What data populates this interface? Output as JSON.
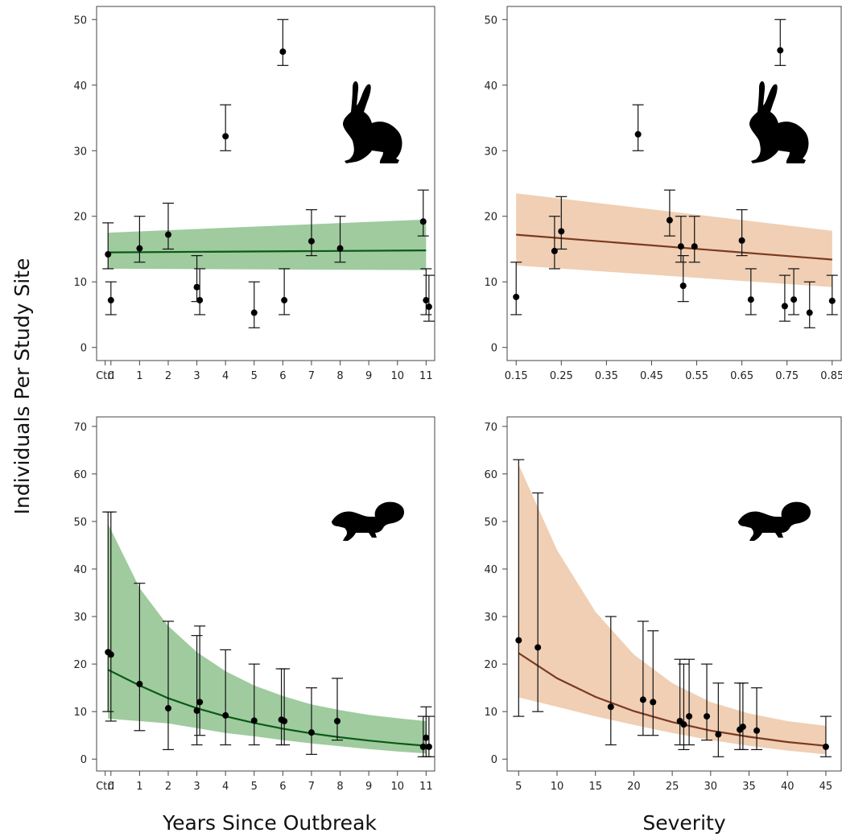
{
  "shared": {
    "ylabel": "Individuals Per Study Site",
    "xlabel_left": "Years Since Outbreak",
    "xlabel_right": "Severity"
  },
  "chart_data": [
    {
      "id": "hare-years",
      "type": "scatter",
      "icon": "hare-silhouette-icon",
      "band_color": "#9fcb9f",
      "line_color": "#0a5a14",
      "xlim": [
        -0.5,
        11.3
      ],
      "ylim": [
        -2,
        52
      ],
      "x_ticks": [
        {
          "v": -0.2,
          "t": "Ctrl"
        },
        {
          "v": 1,
          "t": "1"
        },
        {
          "v": 2,
          "t": "2"
        },
        {
          "v": 3,
          "t": "3"
        },
        {
          "v": 4,
          "t": "4"
        },
        {
          "v": 5,
          "t": "5"
        },
        {
          "v": 6,
          "t": "6"
        },
        {
          "v": 7,
          "t": "7"
        },
        {
          "v": 8,
          "t": "8"
        },
        {
          "v": 9,
          "t": "9"
        },
        {
          "v": 10,
          "t": "10"
        },
        {
          "v": 11,
          "t": "11"
        }
      ],
      "x_ticks_extra": [
        {
          "v": 0,
          "t": "0"
        }
      ],
      "y_ticks": [
        0,
        10,
        20,
        30,
        40,
        50
      ],
      "fit": {
        "x": [
          -0.1,
          11
        ],
        "y": [
          14.5,
          14.8
        ],
        "lo": [
          12,
          11.8
        ],
        "hi": [
          17.5,
          19.5
        ]
      },
      "points": [
        {
          "x": -0.1,
          "y": 14.2,
          "lo": 12,
          "hi": 19
        },
        {
          "x": 0,
          "y": 7.2,
          "lo": 5,
          "hi": 10
        },
        {
          "x": 1,
          "y": 15.1,
          "lo": 13,
          "hi": 20
        },
        {
          "x": 2,
          "y": 17.2,
          "lo": 15,
          "hi": 22
        },
        {
          "x": 3,
          "y": 9.2,
          "lo": 7,
          "hi": 14
        },
        {
          "x": 3.1,
          "y": 7.2,
          "lo": 5,
          "hi": 12
        },
        {
          "x": 4,
          "y": 32.2,
          "lo": 30,
          "hi": 37
        },
        {
          "x": 5,
          "y": 5.3,
          "lo": 3,
          "hi": 10
        },
        {
          "x": 6,
          "y": 45.1,
          "lo": 43,
          "hi": 50
        },
        {
          "x": 6.05,
          "y": 7.2,
          "lo": 5,
          "hi": 12
        },
        {
          "x": 7,
          "y": 16.2,
          "lo": 14,
          "hi": 21
        },
        {
          "x": 8,
          "y": 15.1,
          "lo": 13,
          "hi": 20
        },
        {
          "x": 10.9,
          "y": 19.2,
          "lo": 17,
          "hi": 24
        },
        {
          "x": 11,
          "y": 7.2,
          "lo": 5,
          "hi": 12
        },
        {
          "x": 11.1,
          "y": 6.2,
          "lo": 4,
          "hi": 11
        }
      ]
    },
    {
      "id": "hare-severity",
      "type": "scatter",
      "icon": "hare-silhouette-icon",
      "band_color": "#f0cfb4",
      "line_color": "#7a3a20",
      "xlim": [
        0.13,
        0.87
      ],
      "ylim": [
        -2,
        52
      ],
      "x_ticks": [
        {
          "v": 0.15,
          "t": "0.15"
        },
        {
          "v": 0.25,
          "t": "0.25"
        },
        {
          "v": 0.35,
          "t": "0.35"
        },
        {
          "v": 0.45,
          "t": "0.45"
        },
        {
          "v": 0.55,
          "t": "0.55"
        },
        {
          "v": 0.65,
          "t": "0.65"
        },
        {
          "v": 0.75,
          "t": "0.75"
        },
        {
          "v": 0.85,
          "t": "0.85"
        }
      ],
      "y_ticks": [
        0,
        10,
        20,
        30,
        40,
        50
      ],
      "fit": {
        "x": [
          0.15,
          0.85
        ],
        "y": [
          17.2,
          13.4
        ],
        "lo": [
          12.5,
          9.2
        ],
        "hi": [
          23.5,
          17.8
        ]
      },
      "points": [
        {
          "x": 0.15,
          "y": 7.7,
          "lo": 5,
          "hi": 13
        },
        {
          "x": 0.235,
          "y": 14.7,
          "lo": 12,
          "hi": 20
        },
        {
          "x": 0.25,
          "y": 17.7,
          "lo": 15,
          "hi": 23
        },
        {
          "x": 0.42,
          "y": 32.5,
          "lo": 30,
          "hi": 37
        },
        {
          "x": 0.49,
          "y": 19.4,
          "lo": 17,
          "hi": 24
        },
        {
          "x": 0.515,
          "y": 15.4,
          "lo": 13,
          "hi": 20
        },
        {
          "x": 0.52,
          "y": 9.4,
          "lo": 7,
          "hi": 14
        },
        {
          "x": 0.545,
          "y": 15.4,
          "lo": 13,
          "hi": 20
        },
        {
          "x": 0.65,
          "y": 16.3,
          "lo": 14,
          "hi": 21
        },
        {
          "x": 0.67,
          "y": 7.3,
          "lo": 5,
          "hi": 12
        },
        {
          "x": 0.735,
          "y": 45.3,
          "lo": 43,
          "hi": 50
        },
        {
          "x": 0.745,
          "y": 6.3,
          "lo": 4,
          "hi": 11
        },
        {
          "x": 0.765,
          "y": 7.3,
          "lo": 5,
          "hi": 12
        },
        {
          "x": 0.8,
          "y": 5.3,
          "lo": 3,
          "hi": 10
        },
        {
          "x": 0.85,
          "y": 7.1,
          "lo": 5,
          "hi": 11
        }
      ]
    },
    {
      "id": "squirrel-years",
      "type": "scatter",
      "icon": "squirrel-silhouette-icon",
      "band_color": "#9fcb9f",
      "line_color": "#0a5a14",
      "xlim": [
        -0.5,
        11.3
      ],
      "ylim": [
        -2.5,
        72
      ],
      "x_ticks": [
        {
          "v": -0.2,
          "t": "Ctrl"
        },
        {
          "v": 1,
          "t": "1"
        },
        {
          "v": 2,
          "t": "2"
        },
        {
          "v": 3,
          "t": "3"
        },
        {
          "v": 4,
          "t": "4"
        },
        {
          "v": 5,
          "t": "5"
        },
        {
          "v": 6,
          "t": "6"
        },
        {
          "v": 7,
          "t": "7"
        },
        {
          "v": 8,
          "t": "8"
        },
        {
          "v": 9,
          "t": "9"
        },
        {
          "v": 10,
          "t": "10"
        },
        {
          "v": 11,
          "t": "11"
        }
      ],
      "x_ticks_extra": [
        {
          "v": 0,
          "t": "0"
        }
      ],
      "y_ticks": [
        0,
        10,
        20,
        30,
        40,
        50,
        60,
        70
      ],
      "fit": {
        "x": [
          -0.1,
          1,
          2,
          3,
          4,
          5,
          6,
          7,
          8,
          9,
          10,
          11
        ],
        "y": [
          18.8,
          15.5,
          12.8,
          10.7,
          9.0,
          7.6,
          6.4,
          5.4,
          4.6,
          3.9,
          3.3,
          2.8
        ],
        "lo": [
          8.5,
          8.0,
          7.5,
          6.5,
          5.5,
          4.8,
          4.0,
          3.3,
          2.7,
          2.1,
          1.6,
          1.2
        ],
        "hi": [
          49.5,
          36.0,
          28.0,
          22.5,
          18.5,
          15.5,
          13.3,
          11.5,
          10.3,
          9.3,
          8.6,
          8.0
        ]
      },
      "points": [
        {
          "x": -0.1,
          "y": 22.5,
          "lo": 10,
          "hi": 52
        },
        {
          "x": 0,
          "y": 22.0,
          "lo": 8,
          "hi": 52
        },
        {
          "x": 1,
          "y": 15.8,
          "lo": 6,
          "hi": 37
        },
        {
          "x": 2,
          "y": 10.7,
          "lo": 2,
          "hi": 29
        },
        {
          "x": 3,
          "y": 10.2,
          "lo": 3,
          "hi": 26
        },
        {
          "x": 3.1,
          "y": 12.0,
          "lo": 5,
          "hi": 28
        },
        {
          "x": 4,
          "y": 9.2,
          "lo": 3,
          "hi": 23
        },
        {
          "x": 5,
          "y": 8.1,
          "lo": 3,
          "hi": 20
        },
        {
          "x": 5.95,
          "y": 8.3,
          "lo": 3,
          "hi": 19
        },
        {
          "x": 6.05,
          "y": 8.0,
          "lo": 3,
          "hi": 19
        },
        {
          "x": 7,
          "y": 5.6,
          "lo": 1,
          "hi": 15
        },
        {
          "x": 7.9,
          "y": 8.0,
          "lo": 4,
          "hi": 17
        },
        {
          "x": 10.9,
          "y": 2.6,
          "lo": 0.5,
          "hi": 9
        },
        {
          "x": 11,
          "y": 4.5,
          "lo": 0.5,
          "hi": 11
        },
        {
          "x": 11.1,
          "y": 2.6,
          "lo": 0.5,
          "hi": 9
        }
      ]
    },
    {
      "id": "squirrel-severity",
      "type": "scatter",
      "icon": "squirrel-silhouette-icon",
      "band_color": "#f0cfb4",
      "line_color": "#7a3a20",
      "xlim": [
        3.5,
        47
      ],
      "ylim": [
        -2.5,
        72
      ],
      "x_ticks": [
        {
          "v": 5,
          "t": "5"
        },
        {
          "v": 10,
          "t": "10"
        },
        {
          "v": 15,
          "t": "15"
        },
        {
          "v": 20,
          "t": "20"
        },
        {
          "v": 25,
          "t": "25"
        },
        {
          "v": 30,
          "t": "30"
        },
        {
          "v": 35,
          "t": "35"
        },
        {
          "v": 40,
          "t": "40"
        },
        {
          "v": 45,
          "t": "45"
        }
      ],
      "y_ticks": [
        0,
        10,
        20,
        30,
        40,
        50,
        60,
        70
      ],
      "fit": {
        "x": [
          5,
          10,
          15,
          20,
          25,
          30,
          35,
          40,
          45
        ],
        "y": [
          22.3,
          17.0,
          13.1,
          10.1,
          7.8,
          6.0,
          4.7,
          3.6,
          2.8
        ],
        "lo": [
          13.0,
          11.0,
          9.0,
          7.2,
          5.5,
          4.0,
          2.8,
          1.8,
          1.0
        ],
        "hi": [
          62.0,
          44.0,
          31.0,
          22.0,
          16.0,
          12.0,
          9.6,
          8.0,
          7.0
        ]
      },
      "points": [
        {
          "x": 5,
          "y": 25.0,
          "lo": 9,
          "hi": 63
        },
        {
          "x": 7.5,
          "y": 23.5,
          "lo": 10,
          "hi": 56
        },
        {
          "x": 17,
          "y": 11.0,
          "lo": 3,
          "hi": 30
        },
        {
          "x": 21.2,
          "y": 12.5,
          "lo": 5,
          "hi": 29
        },
        {
          "x": 22.5,
          "y": 12.0,
          "lo": 5,
          "hi": 27
        },
        {
          "x": 26,
          "y": 8.0,
          "lo": 3,
          "hi": 21
        },
        {
          "x": 26.5,
          "y": 7.3,
          "lo": 2,
          "hi": 20
        },
        {
          "x": 27.2,
          "y": 9.0,
          "lo": 3,
          "hi": 21
        },
        {
          "x": 29.5,
          "y": 9.0,
          "lo": 4,
          "hi": 20
        },
        {
          "x": 31,
          "y": 5.2,
          "lo": 0.5,
          "hi": 16
        },
        {
          "x": 33.8,
          "y": 6.2,
          "lo": 2,
          "hi": 16
        },
        {
          "x": 34.2,
          "y": 6.8,
          "lo": 2,
          "hi": 16
        },
        {
          "x": 36,
          "y": 6.0,
          "lo": 2,
          "hi": 15
        },
        {
          "x": 45,
          "y": 2.6,
          "lo": 0.5,
          "hi": 9
        }
      ]
    }
  ]
}
